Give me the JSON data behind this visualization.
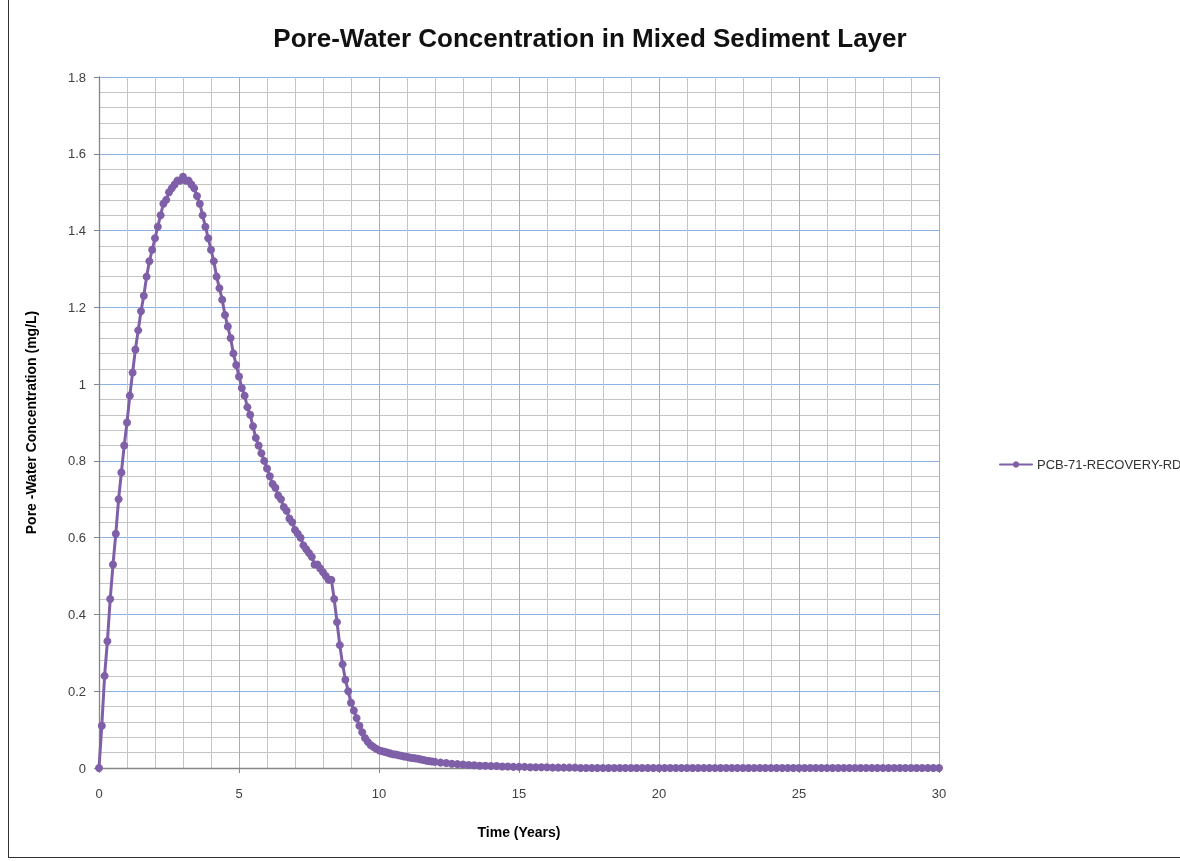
{
  "chart_data": {
    "type": "line",
    "title": "Pore-Water Concentration in Mixed Sediment Layer",
    "xlabel": "Time (Years)",
    "ylabel": "Pore -Water Concentration (mg/L)",
    "x": [
      0,
      0.1,
      0.2,
      0.3,
      0.4,
      0.5,
      0.6,
      0.7,
      0.8,
      0.9,
      1,
      1.1,
      1.2,
      1.3,
      1.4,
      1.5,
      1.6,
      1.7,
      1.8,
      1.9,
      2,
      2.1,
      2.2,
      2.3,
      2.4,
      2.5,
      2.6,
      2.7,
      2.8,
      2.9,
      3,
      3.1,
      3.2,
      3.3,
      3.4,
      3.5,
      3.6,
      3.7,
      3.8,
      3.9,
      4,
      4.1,
      4.2,
      4.3,
      4.4,
      4.5,
      4.6,
      4.7,
      4.8,
      4.9,
      5,
      5.1,
      5.2,
      5.3,
      5.4,
      5.5,
      5.6,
      5.7,
      5.8,
      5.9,
      6,
      6.1,
      6.2,
      6.3,
      6.4,
      6.5,
      6.6,
      6.7,
      6.8,
      6.9,
      7,
      7.1,
      7.2,
      7.3,
      7.4,
      7.5,
      7.6,
      7.7,
      7.8,
      7.9,
      8,
      8.1,
      8.2,
      8.3,
      8.4,
      8.5,
      8.6,
      8.7,
      8.8,
      8.9,
      9,
      9.1,
      9.2,
      9.3,
      9.4,
      9.5,
      9.6,
      9.7,
      9.8,
      9.9,
      10,
      10.1,
      10.2,
      10.3,
      10.4,
      10.5,
      10.6,
      10.7,
      10.8,
      10.9,
      11,
      11.1,
      11.2,
      11.3,
      11.4,
      11.5,
      11.6,
      11.7,
      11.8,
      11.9,
      12,
      12.2,
      12.4,
      12.6,
      12.8,
      13,
      13.2,
      13.4,
      13.6,
      13.8,
      14,
      14.2,
      14.4,
      14.6,
      14.8,
      15,
      15.2,
      15.4,
      15.6,
      15.8,
      16,
      16.2,
      16.4,
      16.6,
      16.8,
      17,
      17.2,
      17.4,
      17.6,
      17.8,
      18,
      18.2,
      18.4,
      18.6,
      18.8,
      19,
      19.2,
      19.4,
      19.6,
      19.8,
      20,
      20.2,
      20.4,
      20.6,
      20.8,
      21,
      21.2,
      21.4,
      21.6,
      21.8,
      22,
      22.2,
      22.4,
      22.6,
      22.8,
      23,
      23.2,
      23.4,
      23.6,
      23.8,
      24,
      24.2,
      24.4,
      24.6,
      24.8,
      25,
      25.2,
      25.4,
      25.6,
      25.8,
      26,
      26.2,
      26.4,
      26.6,
      26.8,
      27,
      27.2,
      27.4,
      27.6,
      27.8,
      28,
      28.2,
      28.4,
      28.6,
      28.8,
      29,
      29.2,
      29.4,
      29.6,
      29.8,
      30
    ],
    "series": [
      {
        "name": "PCB-71-RECOVERY-RD",
        "color": "#7f60a8",
        "values": [
          0,
          0.11,
          0.24,
          0.33,
          0.44,
          0.53,
          0.61,
          0.7,
          0.77,
          0.84,
          0.9,
          0.97,
          1.03,
          1.09,
          1.14,
          1.19,
          1.23,
          1.28,
          1.32,
          1.35,
          1.38,
          1.41,
          1.44,
          1.47,
          1.48,
          1.5,
          1.51,
          1.52,
          1.53,
          1.53,
          1.54,
          1.53,
          1.53,
          1.52,
          1.51,
          1.49,
          1.47,
          1.44,
          1.41,
          1.38,
          1.35,
          1.32,
          1.28,
          1.25,
          1.22,
          1.18,
          1.15,
          1.12,
          1.08,
          1.05,
          1.02,
          0.99,
          0.97,
          0.94,
          0.92,
          0.89,
          0.86,
          0.84,
          0.82,
          0.8,
          0.78,
          0.76,
          0.74,
          0.73,
          0.71,
          0.7,
          0.68,
          0.67,
          0.65,
          0.64,
          0.62,
          0.61,
          0.6,
          0.58,
          0.57,
          0.56,
          0.55,
          0.53,
          0.53,
          0.52,
          0.51,
          0.5,
          0.49,
          0.49,
          0.44,
          0.38,
          0.32,
          0.27,
          0.23,
          0.2,
          0.17,
          0.15,
          0.13,
          0.11,
          0.093,
          0.078,
          0.068,
          0.06,
          0.055,
          0.05,
          0.046,
          0.044,
          0.042,
          0.04,
          0.038,
          0.036,
          0.035,
          0.033,
          0.032,
          0.03,
          0.029,
          0.027,
          0.026,
          0.025,
          0.024,
          0.022,
          0.021,
          0.019,
          0.018,
          0.017,
          0.016,
          0.014,
          0.013,
          0.011,
          0.01,
          0.009,
          0.008,
          0.007,
          0.006,
          0.006,
          0.005,
          0.005,
          0.004,
          0.004,
          0.003,
          0.003,
          0.003,
          0.002,
          0.002,
          0.002,
          0.002,
          0.001,
          0.001,
          0.001,
          0.001,
          0.001,
          0,
          0,
          0,
          0,
          0,
          0,
          0,
          0,
          0,
          0,
          0,
          0,
          0,
          0,
          0,
          0,
          0,
          0,
          0,
          0,
          0,
          0,
          0,
          0,
          0,
          0,
          0,
          0,
          0,
          0,
          0,
          0,
          0,
          0,
          0,
          0,
          0,
          0,
          0,
          0,
          0,
          0,
          0,
          0,
          0,
          0,
          0,
          0,
          0,
          0,
          0,
          0,
          0,
          0,
          0,
          0,
          0,
          0,
          0,
          0,
          0,
          0,
          0,
          0,
          0
        ]
      }
    ],
    "xlim": [
      0,
      30
    ],
    "xticks": [
      0,
      5,
      10,
      15,
      20,
      25,
      30
    ],
    "ylim": [
      0,
      1.8
    ],
    "yticks": [
      0,
      0.2,
      0.4,
      0.6,
      0.8,
      1,
      1.2,
      1.4,
      1.6,
      1.8
    ],
    "grid": true,
    "legend": "right",
    "marker": "circle"
  }
}
